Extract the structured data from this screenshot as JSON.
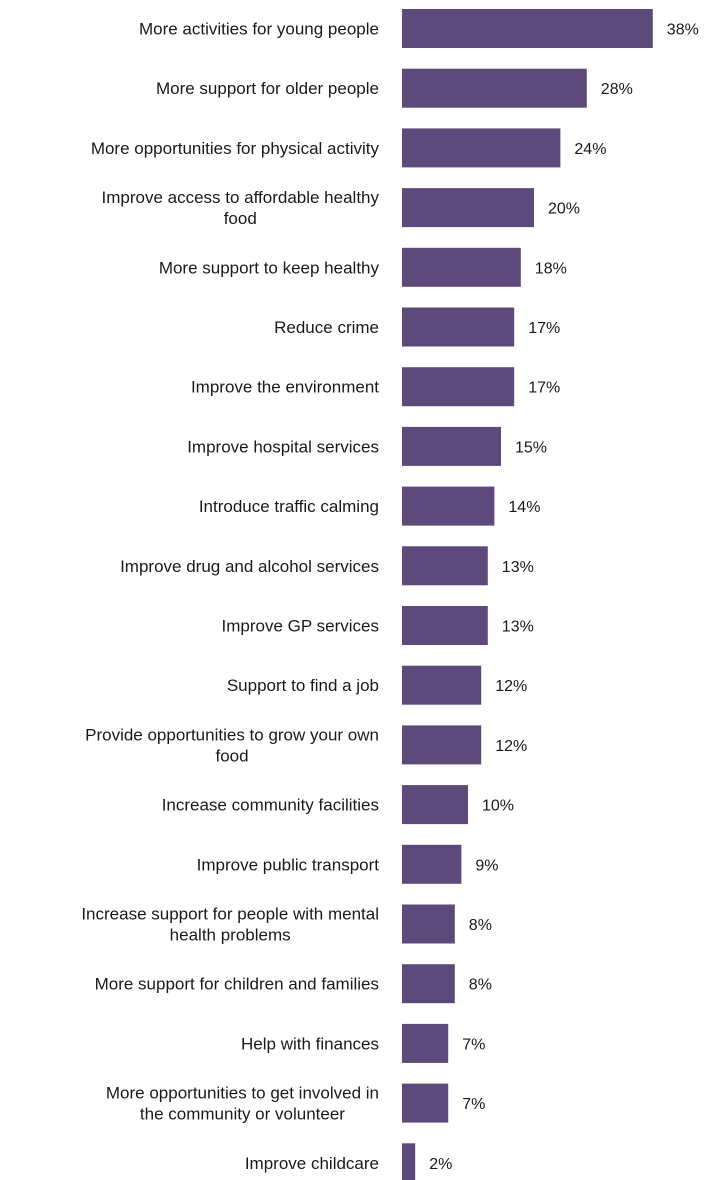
{
  "chart_data": {
    "type": "bar",
    "orientation": "horizontal",
    "title": "",
    "xlabel": "",
    "ylabel": "",
    "unit": "%",
    "xlim": [
      0,
      40
    ],
    "grid": false,
    "legend": "none",
    "bar_color": "#5E4A7A",
    "categories": [
      "More activities for young people",
      "More support for older people",
      "More opportunities for physical activity",
      [
        "Improve access to affordable healthy",
        "food"
      ],
      "More support to keep healthy",
      "Reduce crime",
      "Improve the environment",
      "Improve hospital services",
      "Introduce traffic calming",
      "Improve drug and alcohol services",
      "Improve GP services",
      "Support to find a job",
      [
        "Provide opportunities to grow your own",
        "food"
      ],
      "Increase community facilities",
      "Improve public transport",
      [
        "Increase support for people with mental",
        "health problems"
      ],
      "More support for children and families",
      "Help with finances",
      [
        "More opportunities to get involved in",
        "the community  or volunteer"
      ],
      "Improve childcare"
    ],
    "values": [
      38,
      28,
      24,
      20,
      18,
      17,
      17,
      15,
      14,
      13,
      13,
      12,
      12,
      10,
      9,
      8,
      8,
      7,
      7,
      2
    ],
    "value_labels": [
      "38%",
      "28%",
      "24%",
      "20%",
      "18%",
      "17%",
      "17%",
      "15%",
      "14%",
      "13%",
      "13%",
      "12%",
      "12%",
      "10%",
      "9%",
      "8%",
      "8%",
      "7%",
      "7%",
      "2%"
    ]
  }
}
